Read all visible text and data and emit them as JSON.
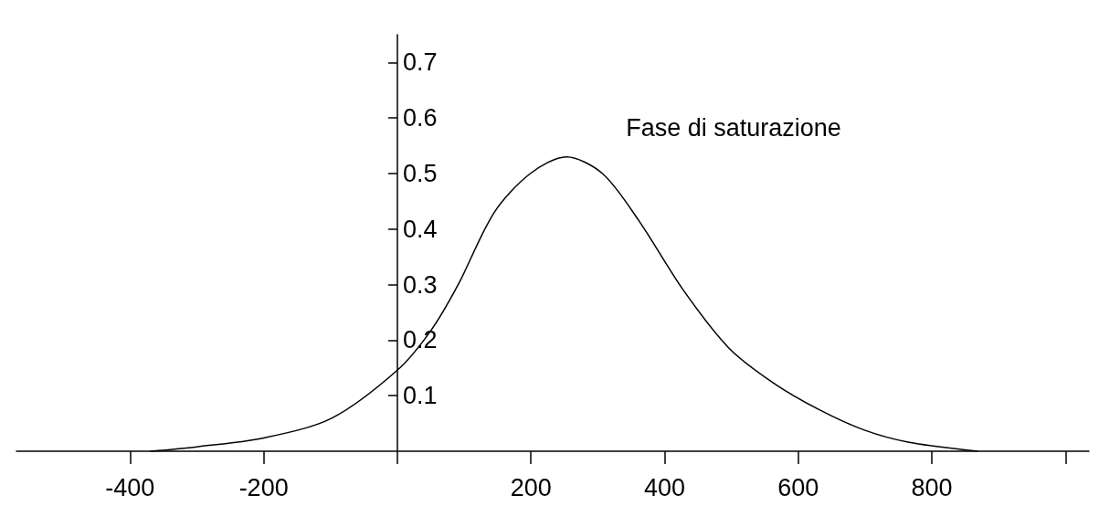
{
  "chart_data": {
    "type": "line",
    "x": [
      -369,
      -300,
      -200,
      -99,
      0,
      50,
      91,
      145,
      199,
      253,
      307,
      361,
      428,
      496,
      564,
      631,
      699,
      766,
      868
    ],
    "series": [
      {
        "color": "#000000",
        "values": [
          0,
          0.008,
          0.024,
          0.059,
          0.146,
          0.217,
          0.3,
          0.43,
          0.5,
          0.53,
          0.5,
          0.416,
          0.29,
          0.186,
          0.122,
          0.075,
          0.038,
          0.016,
          0
        ]
      }
    ],
    "xlim": [
      -570,
      1035
    ],
    "ylim": [
      0,
      0.75
    ],
    "xticks": [
      -400,
      -200,
      {
        "value": 0,
        "label": null
      },
      200,
      400,
      600,
      800,
      {
        "value": 1000,
        "label": null
      }
    ],
    "yticks": [
      0.1,
      0.2,
      0.3,
      0.4,
      0.5,
      0.6,
      0.7
    ],
    "annotations": [
      "Fase di saturazione"
    ],
    "grid": false,
    "marker": "none",
    "line_style": "solid"
  }
}
